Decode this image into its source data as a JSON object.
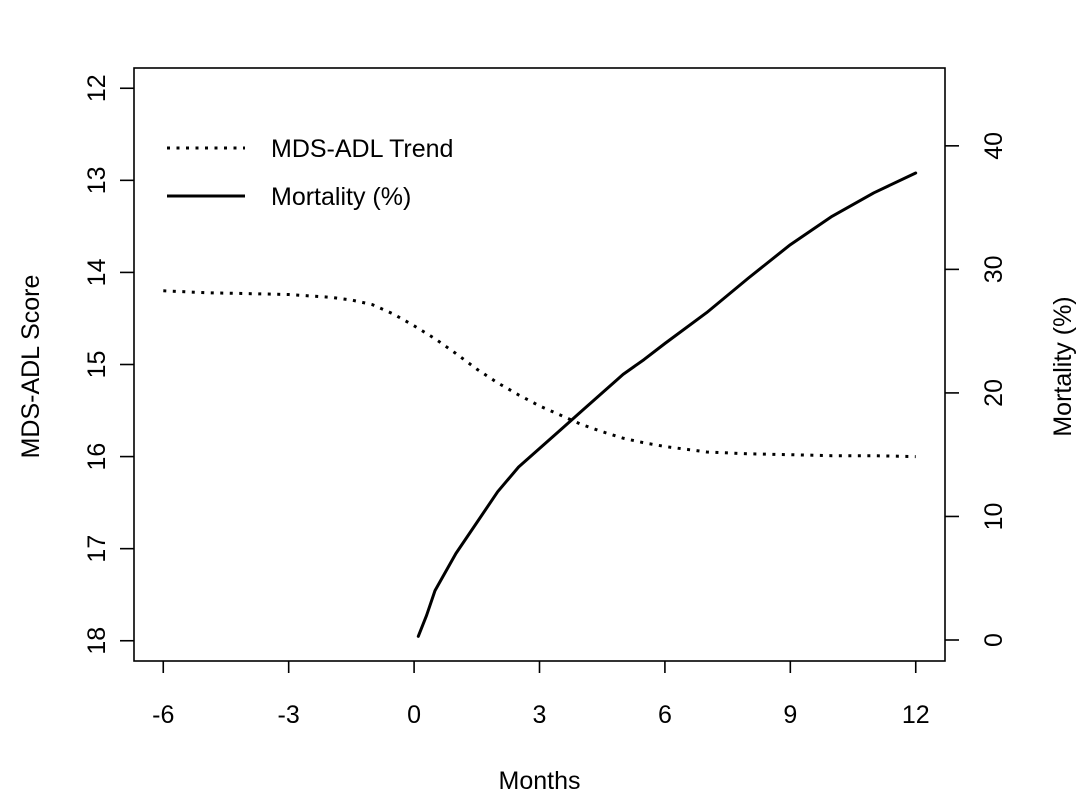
{
  "chart_data": {
    "type": "line",
    "title": "",
    "xlabel": "Months",
    "ylabel_left": "MDS-ADL Score",
    "ylabel_right": "Mortality (%)",
    "xlim": [
      -6.7,
      12.7
    ],
    "x_ticks": [
      -6,
      -3,
      0,
      3,
      6,
      9,
      12
    ],
    "x_tick_labels": [
      "-6",
      "-3",
      "0",
      "3",
      "6",
      "9",
      "12"
    ],
    "ylim_left": [
      18.22,
      11.78
    ],
    "ylim_left_reversed": true,
    "y_left_ticks": [
      12,
      13,
      14,
      15,
      16,
      17,
      18
    ],
    "y_left_tick_labels": [
      "12",
      "13",
      "14",
      "15",
      "16",
      "17",
      "18"
    ],
    "ylim_right": [
      -1.7,
      46.3
    ],
    "y_right_ticks": [
      0,
      10,
      20,
      30,
      40
    ],
    "y_right_tick_labels": [
      "0",
      "10",
      "20",
      "30",
      "40"
    ],
    "grid": false,
    "legend_position": "top-left",
    "series": [
      {
        "name": "MDS-ADL Trend",
        "axis": "left",
        "style": "dotted",
        "color": "#000000",
        "x": [
          -6,
          -5,
          -4,
          -3,
          -2,
          -1.5,
          -1,
          -0.5,
          0,
          0.5,
          1,
          1.5,
          2,
          2.5,
          3,
          3.5,
          4,
          4.5,
          5,
          5.5,
          6,
          7,
          8,
          9,
          10,
          11,
          12
        ],
        "y": [
          14.2,
          14.22,
          14.23,
          14.24,
          14.27,
          14.3,
          14.35,
          14.45,
          14.58,
          14.72,
          14.88,
          15.05,
          15.2,
          15.33,
          15.45,
          15.55,
          15.65,
          15.73,
          15.8,
          15.85,
          15.89,
          15.95,
          15.97,
          15.98,
          15.99,
          15.99,
          16.0
        ]
      },
      {
        "name": "Mortality (%)",
        "axis": "right",
        "style": "solid",
        "color": "#000000",
        "x": [
          0.1,
          0.3,
          0.5,
          1,
          1.5,
          2,
          2.5,
          3,
          3.5,
          4,
          4.5,
          5,
          5.5,
          6,
          7,
          8,
          9,
          10,
          11,
          12
        ],
        "y": [
          0.3,
          2,
          4,
          7,
          9.5,
          12,
          14,
          15.5,
          17,
          18.5,
          20,
          21.5,
          22.7,
          24,
          26.5,
          29.3,
          32,
          34.3,
          36.2,
          37.8
        ]
      }
    ]
  }
}
